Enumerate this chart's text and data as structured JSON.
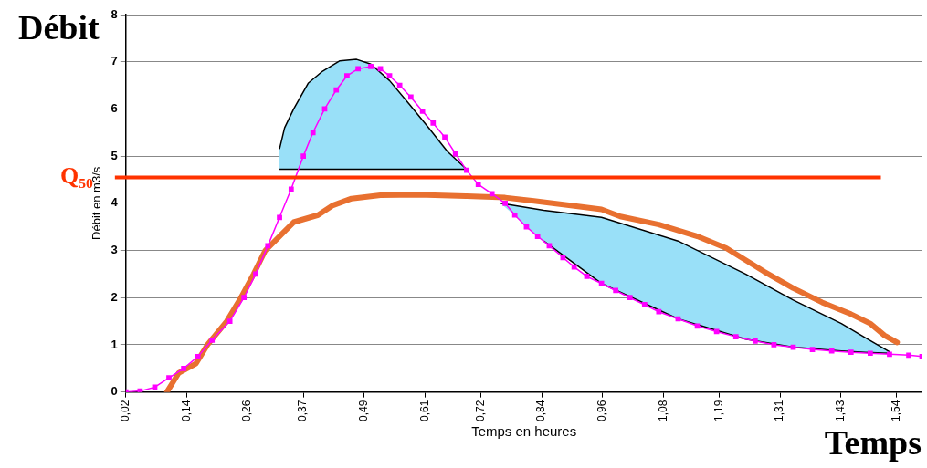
{
  "chart_data": {
    "type": "line",
    "xlabel": "Temps en heures",
    "ylabel": "Débit en m3/s",
    "annotations": [
      "Débit",
      "Temps"
    ],
    "xlim": [
      0.02,
      1.59
    ],
    "xticks": [
      {
        "value": 0.02,
        "label": "0,02"
      },
      {
        "value": 0.14,
        "label": "0,14"
      },
      {
        "value": 0.26,
        "label": "0,26"
      },
      {
        "value": 0.37,
        "label": "0,37"
      },
      {
        "value": 0.49,
        "label": "0,49"
      },
      {
        "value": 0.61,
        "label": "0,61"
      },
      {
        "value": 0.72,
        "label": "0,72"
      },
      {
        "value": 0.84,
        "label": "0,84"
      },
      {
        "value": 0.96,
        "label": "0,96"
      },
      {
        "value": 1.08,
        "label": "1,08"
      },
      {
        "value": 1.19,
        "label": "1,19"
      },
      {
        "value": 1.31,
        "label": "1,31"
      },
      {
        "value": 1.43,
        "label": "1,43"
      },
      {
        "value": 1.54,
        "label": "1,54"
      }
    ],
    "ylim": [
      0,
      8
    ],
    "yticks": [
      0,
      1,
      2,
      3,
      4,
      5,
      6,
      7,
      8
    ],
    "grid": "y",
    "legend": false,
    "ref_lines": [
      {
        "axis": "y",
        "value": 4.55,
        "label": "Q₅₀",
        "color": "#ff3300"
      }
    ],
    "series": [
      {
        "type": "area",
        "color": "#99e0f8",
        "x": [
          0.323,
          0.333,
          0.351,
          0.38,
          0.408,
          0.442,
          0.475,
          0.503,
          0.54,
          0.579,
          0.617,
          0.654,
          0.692,
          0.323
        ],
        "values": [
          5.15,
          5.6,
          6.0,
          6.55,
          6.8,
          7.02,
          7.05,
          6.95,
          6.6,
          6.1,
          5.6,
          5.1,
          4.72,
          4.72
        ]
      },
      {
        "type": "area",
        "color": "#99e0f8",
        "x": [
          0.759,
          0.844,
          0.958,
          1.109,
          1.242,
          1.336,
          1.431,
          1.478,
          1.526,
          1.526,
          1.478,
          1.431,
          1.336,
          1.242,
          1.109,
          0.958,
          0.844
        ],
        "values": [
          4.0,
          3.85,
          3.7,
          3.2,
          2.5,
          1.95,
          1.45,
          1.15,
          0.85,
          0.82,
          0.84,
          0.87,
          0.95,
          1.12,
          1.55,
          2.3,
          3.2
        ]
      },
      {
        "type": "line",
        "color": "#ff00ff",
        "marker": "square",
        "x": [
          0.02,
          0.048,
          0.077,
          0.105,
          0.134,
          0.162,
          0.19,
          0.225,
          0.253,
          0.276,
          0.3,
          0.323,
          0.346,
          0.37,
          0.389,
          0.412,
          0.435,
          0.456,
          0.478,
          0.503,
          0.522,
          0.54,
          0.56,
          0.582,
          0.605,
          0.626,
          0.649,
          0.67,
          0.692,
          0.715,
          0.742,
          0.768,
          0.787,
          0.81,
          0.832,
          0.855,
          0.882,
          0.904,
          0.929,
          0.958,
          0.986,
          1.014,
          1.043,
          1.071,
          1.109,
          1.147,
          1.185,
          1.223,
          1.261,
          1.298,
          1.336,
          1.374,
          1.412,
          1.45,
          1.488,
          1.526,
          1.564,
          1.59
        ],
        "values": [
          0,
          0.02,
          0.1,
          0.3,
          0.5,
          0.75,
          1.1,
          1.5,
          2.0,
          2.5,
          3.1,
          3.7,
          4.3,
          5.0,
          5.5,
          6.0,
          6.4,
          6.7,
          6.85,
          6.9,
          6.85,
          6.7,
          6.5,
          6.25,
          5.95,
          5.7,
          5.4,
          5.05,
          4.7,
          4.4,
          4.2,
          4.0,
          3.75,
          3.5,
          3.3,
          3.1,
          2.85,
          2.65,
          2.45,
          2.3,
          2.15,
          2.0,
          1.85,
          1.7,
          1.55,
          1.4,
          1.28,
          1.17,
          1.08,
          1.0,
          0.95,
          0.9,
          0.87,
          0.84,
          0.82,
          0.8,
          0.78,
          0.75
        ]
      },
      {
        "type": "line",
        "color": "#e87030",
        "marker": "none",
        "x": [
          0.101,
          0.124,
          0.158,
          0.181,
          0.219,
          0.247,
          0.272,
          0.295,
          0.323,
          0.351,
          0.399,
          0.427,
          0.465,
          0.522,
          0.598,
          0.692,
          0.768,
          0.825,
          0.901,
          0.958,
          0.995,
          1.071,
          1.147,
          1.204,
          1.279,
          1.336,
          1.393,
          1.45,
          1.488,
          1.516,
          1.541
        ],
        "values": [
          0,
          0.4,
          0.6,
          1.0,
          1.5,
          2.0,
          2.5,
          3.0,
          3.3,
          3.6,
          3.75,
          3.95,
          4.1,
          4.17,
          4.18,
          4.15,
          4.12,
          4.05,
          3.95,
          3.87,
          3.72,
          3.55,
          3.3,
          3.05,
          2.55,
          2.2,
          1.9,
          1.65,
          1.45,
          1.2,
          1.05
        ]
      }
    ]
  }
}
